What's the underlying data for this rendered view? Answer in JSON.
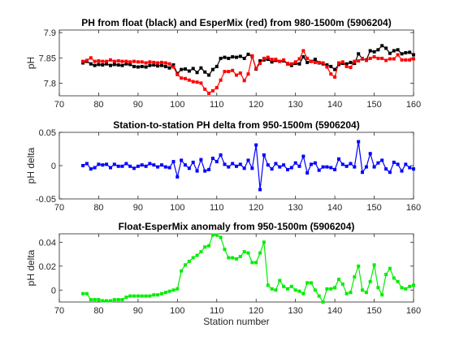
{
  "chart_data": [
    {
      "type": "line",
      "title": "PH from float (black) and EsperMix (red) from 980-1500m (5906204)",
      "xlabel": "",
      "ylabel": "pH",
      "xlim": [
        70,
        160
      ],
      "ylim": [
        7.775,
        7.905
      ],
      "xticks": [
        70,
        80,
        90,
        100,
        110,
        120,
        130,
        140,
        150,
        160
      ],
      "yticks": [
        7.8,
        7.85,
        7.9
      ],
      "ytick_labels": [
        "7.8",
        "7.85",
        "7.9"
      ],
      "grid": false,
      "series": [
        {
          "color": "#000000",
          "x": [
            76,
            77,
            78,
            79,
            80,
            81,
            82,
            83,
            84,
            85,
            86,
            87,
            88,
            89,
            90,
            91,
            92,
            93,
            94,
            95,
            96,
            97,
            98,
            99,
            100,
            101,
            102,
            103,
            104,
            105,
            106,
            107,
            108,
            109,
            110,
            111,
            112,
            113,
            114,
            115,
            116,
            117,
            118,
            119,
            120,
            121,
            122,
            123,
            124,
            125,
            126,
            127,
            128,
            129,
            130,
            131,
            132,
            133,
            134,
            135,
            136,
            137,
            138,
            139,
            140,
            141,
            142,
            143,
            144,
            145,
            146,
            147,
            148,
            149,
            150,
            151,
            152,
            153,
            154,
            155,
            156,
            157,
            158,
            159,
            160
          ],
          "y": [
            7.84,
            7.843,
            7.838,
            7.835,
            7.837,
            7.836,
            7.838,
            7.835,
            7.837,
            7.836,
            7.835,
            7.838,
            7.837,
            7.833,
            7.832,
            7.833,
            7.832,
            7.835,
            7.836,
            7.834,
            7.835,
            7.833,
            7.83,
            7.836,
            7.819,
            7.827,
            7.828,
            7.824,
            7.829,
            7.821,
            7.83,
            7.822,
            7.816,
            7.827,
            7.833,
            7.849,
            7.851,
            7.849,
            7.852,
            7.851,
            7.853,
            7.849,
            7.857,
            7.853,
            7.828,
            7.844,
            7.846,
            7.847,
            7.842,
            7.845,
            7.843,
            7.844,
            7.838,
            7.835,
            7.839,
            7.838,
            7.852,
            7.841,
            7.843,
            7.847,
            7.84,
            7.838,
            7.836,
            7.833,
            7.827,
            7.837,
            7.839,
            7.838,
            7.841,
            7.839,
            7.858,
            7.848,
            7.846,
            7.864,
            7.862,
            7.866,
            7.874,
            7.869,
            7.859,
            7.864,
            7.866,
            7.858,
            7.86,
            7.861,
            7.856
          ]
        },
        {
          "color": "#ff0000",
          "x": [
            76,
            77,
            78,
            79,
            80,
            81,
            82,
            83,
            84,
            85,
            86,
            87,
            88,
            89,
            90,
            91,
            92,
            93,
            94,
            95,
            96,
            97,
            98,
            99,
            100,
            101,
            102,
            103,
            104,
            105,
            106,
            107,
            108,
            109,
            110,
            111,
            112,
            113,
            114,
            115,
            116,
            117,
            118,
            119,
            120,
            121,
            122,
            123,
            124,
            125,
            126,
            127,
            128,
            129,
            130,
            131,
            132,
            133,
            134,
            135,
            136,
            137,
            138,
            139,
            140,
            141,
            142,
            143,
            144,
            145,
            146,
            147,
            148,
            149,
            150,
            151,
            152,
            153,
            154,
            155,
            156,
            157,
            158,
            159,
            160
          ],
          "y": [
            7.843,
            7.845,
            7.85,
            7.843,
            7.844,
            7.843,
            7.843,
            7.846,
            7.843,
            7.844,
            7.843,
            7.843,
            7.842,
            7.843,
            7.842,
            7.842,
            7.84,
            7.842,
            7.841,
            7.84,
            7.841,
            7.84,
            7.838,
            7.832,
            7.817,
            7.81,
            7.809,
            7.806,
            7.803,
            7.802,
            7.8,
            7.788,
            7.78,
            7.785,
            7.791,
            7.806,
            7.823,
            7.823,
            7.825,
            7.816,
            7.82,
            7.805,
            7.818,
            7.854,
            7.829,
            7.839,
            7.849,
            7.851,
            7.847,
            7.847,
            7.843,
            7.846,
            7.839,
            7.838,
            7.842,
            7.848,
            7.864,
            7.849,
            7.843,
            7.841,
            7.841,
            7.84,
            7.832,
            7.818,
            7.812,
            7.84,
            7.842,
            7.833,
            7.831,
            7.843,
            7.844,
            7.849,
            7.845,
            7.849,
            7.852,
            7.849,
            7.849,
            7.845,
            7.848,
            7.848,
            7.856,
            7.846,
            7.846,
            7.846,
            7.848
          ]
        }
      ]
    },
    {
      "type": "line",
      "title": "Station-to-station PH delta from 950-1500m (5906204)",
      "xlabel": "",
      "ylabel": "pH delta",
      "xlim": [
        70,
        160
      ],
      "ylim": [
        -0.05,
        0.05
      ],
      "xticks": [
        70,
        80,
        90,
        100,
        110,
        120,
        130,
        140,
        150,
        160
      ],
      "yticks": [
        -0.05,
        0,
        0.05
      ],
      "ytick_labels": [
        "-0.05",
        "0",
        "0.05"
      ],
      "grid": false,
      "series": [
        {
          "color": "#0000ff",
          "x": [
            76,
            77,
            78,
            79,
            80,
            81,
            82,
            83,
            84,
            85,
            86,
            87,
            88,
            89,
            90,
            91,
            92,
            93,
            94,
            95,
            96,
            97,
            98,
            99,
            100,
            101,
            102,
            103,
            104,
            105,
            106,
            107,
            108,
            109,
            110,
            111,
            112,
            113,
            114,
            115,
            116,
            117,
            118,
            119,
            120,
            121,
            122,
            123,
            124,
            125,
            126,
            127,
            128,
            129,
            130,
            131,
            132,
            133,
            134,
            135,
            136,
            137,
            138,
            139,
            140,
            141,
            142,
            143,
            144,
            145,
            146,
            147,
            148,
            149,
            150,
            151,
            152,
            153,
            154,
            155,
            156,
            157,
            158,
            159,
            160
          ],
          "y": [
            0.0,
            0.003,
            -0.005,
            -0.003,
            0.002,
            0.001,
            0.002,
            -0.003,
            0.002,
            -0.001,
            -0.001,
            0.003,
            -0.001,
            -0.004,
            -0.001,
            0.001,
            -0.001,
            0.003,
            0.001,
            -0.002,
            0.001,
            -0.002,
            -0.003,
            0.006,
            -0.017,
            0.008,
            0.001,
            -0.004,
            0.005,
            -0.008,
            0.009,
            -0.008,
            -0.006,
            0.011,
            0.006,
            0.016,
            0.002,
            -0.002,
            0.003,
            -0.001,
            0.002,
            -0.004,
            0.008,
            -0.004,
            0.031,
            -0.036,
            0.016,
            0.001,
            -0.005,
            0.003,
            -0.002,
            0.001,
            -0.006,
            -0.003,
            0.004,
            -0.001,
            0.014,
            -0.011,
            0.002,
            0.004,
            -0.007,
            -0.002,
            -0.002,
            -0.003,
            -0.006,
            0.01,
            0.002,
            -0.001,
            0.003,
            -0.002,
            0.036,
            -0.01,
            -0.002,
            0.018,
            -0.002,
            0.004,
            0.008,
            -0.005,
            -0.01,
            0.005,
            0.002,
            -0.008,
            0.002,
            -0.003,
            -0.005
          ]
        }
      ]
    },
    {
      "type": "line",
      "title": "Float-EsperMix anomaly from 950-1500m (5906204)",
      "xlabel": "Station number",
      "ylabel": "pH delta",
      "xlim": [
        70,
        160
      ],
      "ylim": [
        -0.01,
        0.047
      ],
      "xticks": [
        70,
        80,
        90,
        100,
        110,
        120,
        130,
        140,
        150,
        160
      ],
      "yticks": [
        0,
        0.02,
        0.04
      ],
      "ytick_labels": [
        "0",
        "0.02",
        "0.04"
      ],
      "grid": false,
      "series": [
        {
          "color": "#00ee00",
          "x": [
            76,
            77,
            78,
            79,
            80,
            81,
            82,
            83,
            84,
            85,
            86,
            87,
            88,
            89,
            90,
            91,
            92,
            93,
            94,
            95,
            96,
            97,
            98,
            99,
            100,
            101,
            102,
            103,
            104,
            105,
            106,
            107,
            108,
            109,
            110,
            111,
            112,
            113,
            114,
            115,
            116,
            117,
            118,
            119,
            120,
            121,
            122,
            123,
            124,
            125,
            126,
            127,
            128,
            129,
            130,
            131,
            132,
            133,
            134,
            135,
            136,
            137,
            138,
            139,
            140,
            141,
            142,
            143,
            144,
            145,
            146,
            147,
            148,
            149,
            150,
            151,
            152,
            153,
            154,
            155,
            156,
            157,
            158,
            159,
            160
          ],
          "y": [
            -0.003,
            -0.003,
            -0.008,
            -0.008,
            -0.008,
            -0.009,
            -0.009,
            -0.009,
            -0.008,
            -0.008,
            -0.008,
            -0.006,
            -0.005,
            -0.005,
            -0.005,
            -0.005,
            -0.005,
            -0.005,
            -0.004,
            -0.004,
            -0.003,
            -0.002,
            -0.001,
            0.0,
            0.001,
            0.016,
            0.021,
            0.024,
            0.027,
            0.029,
            0.032,
            0.036,
            0.037,
            0.046,
            0.046,
            0.044,
            0.034,
            0.027,
            0.027,
            0.026,
            0.028,
            0.032,
            0.031,
            0.023,
            0.023,
            0.031,
            0.04,
            0.004,
            0.001,
            0.0,
            0.008,
            0.003,
            0.001,
            0.003,
            0.0,
            -0.001,
            -0.003,
            0.006,
            0.006,
            0.0,
            -0.005,
            -0.01,
            0.001,
            0.001,
            0.002,
            0.009,
            0.005,
            -0.003,
            -0.002,
            0.011,
            0.02,
            0.0,
            -0.002,
            0.007,
            0.021,
            0.002,
            -0.004,
            0.013,
            0.018,
            0.01,
            0.007,
            0.002,
            0.001,
            0.003,
            0.004
          ]
        }
      ]
    }
  ]
}
